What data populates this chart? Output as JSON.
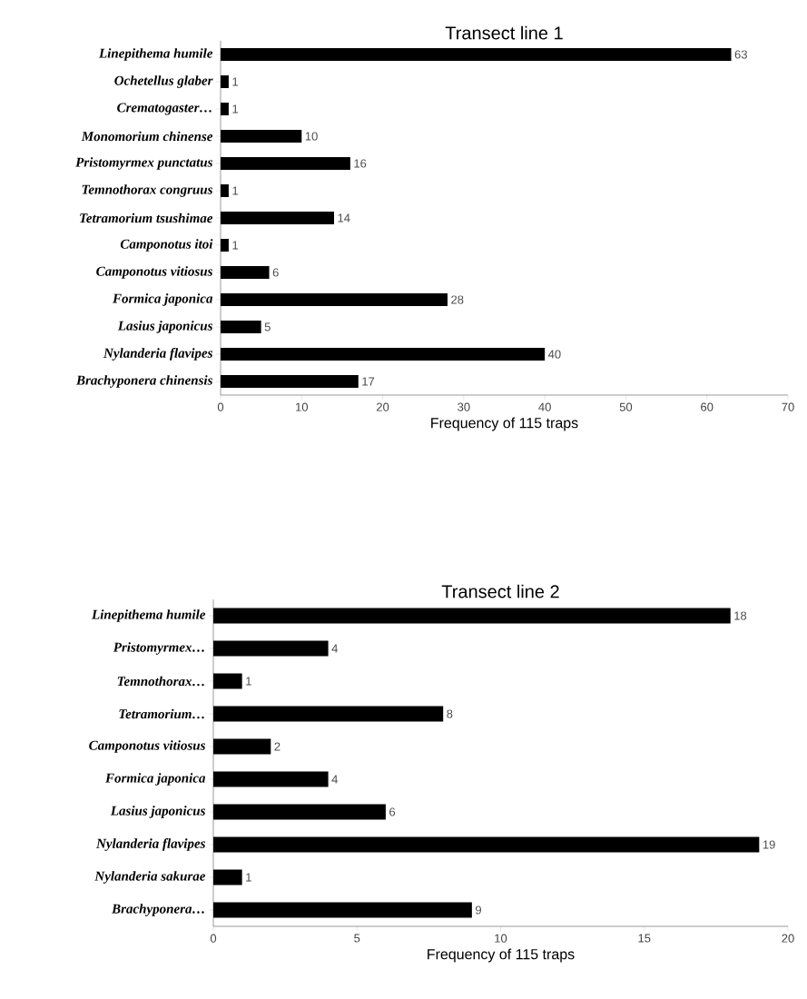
{
  "chart_data": [
    {
      "type": "bar",
      "orientation": "horizontal",
      "title": "Transect line 1",
      "xlabel": "Frequency of 115 traps",
      "categories": [
        "Linepithema humile",
        "Ochetellus glaber",
        "Crematogaster…",
        "Monomorium chinense",
        "Pristomyrmex punctatus",
        "Temnothorax congruus",
        "Tetramorium tsushimae",
        "Camponotus itoi",
        "Camponotus vitiosus",
        "Formica japonica",
        "Lasius japonicus",
        "Nylanderia flavipes",
        "Brachyponera chinensis"
      ],
      "values": [
        63,
        1,
        1,
        10,
        16,
        1,
        14,
        1,
        6,
        28,
        5,
        40,
        17
      ],
      "color": "#000000",
      "xlim": [
        0,
        70
      ],
      "xticks": [
        0,
        10,
        20,
        30,
        40,
        50,
        60,
        70
      ],
      "data_labels": true,
      "grid": false
    },
    {
      "type": "bar",
      "orientation": "horizontal",
      "title": "Transect line 2",
      "xlabel": "Frequency of 115 traps",
      "categories": [
        "Linepithema humile",
        "Pristomyrmex…",
        "Temnothorax…",
        "Tetramorium…",
        "Camponotus vitiosus",
        "Formica japonica",
        "Lasius japonicus",
        "Nylanderia flavipes",
        "Nylanderia sakurae",
        "Brachyponera…"
      ],
      "values": [
        18,
        4,
        1,
        8,
        2,
        4,
        6,
        19,
        1,
        9
      ],
      "color": "#000000",
      "xlim": [
        0,
        20
      ],
      "xticks": [
        0,
        5,
        10,
        15,
        20
      ],
      "data_labels": true,
      "grid": false
    }
  ]
}
